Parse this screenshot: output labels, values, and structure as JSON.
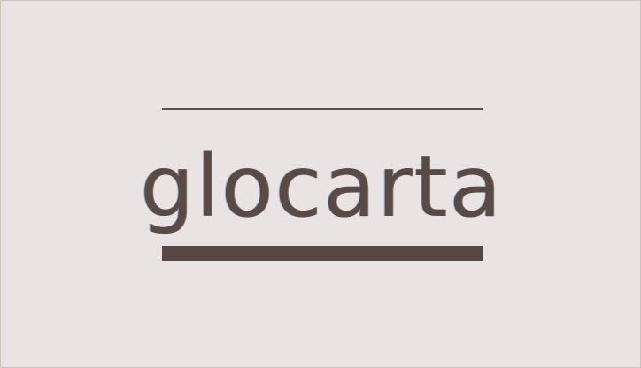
{
  "logo": {
    "wordmark": "glocarta"
  },
  "colors": {
    "background": "#e9e4e3",
    "ink": "#5a4a46",
    "frame_border": "#c8c6b8"
  }
}
